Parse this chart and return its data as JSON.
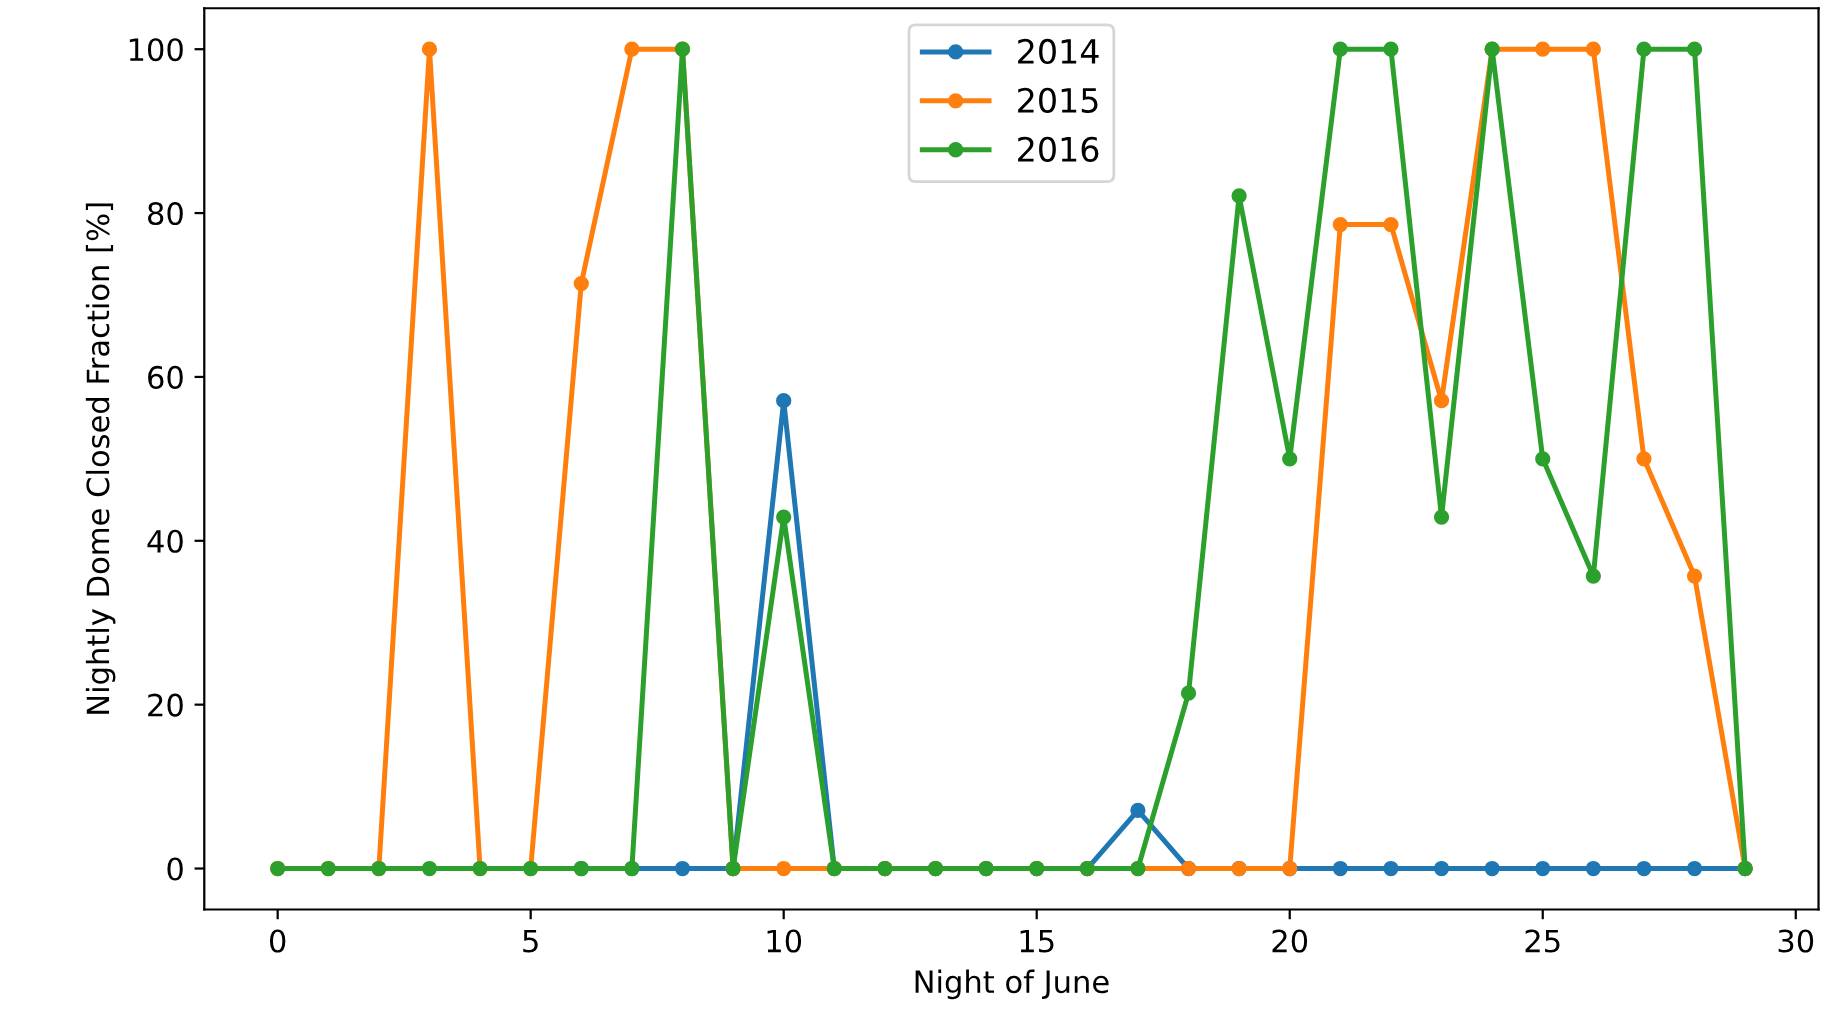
{
  "chart_data": {
    "type": "line",
    "xlabel": "Night of June",
    "ylabel": "Nightly Dome Closed Fraction [%]",
    "x": [
      0,
      1,
      2,
      3,
      4,
      5,
      6,
      7,
      8,
      9,
      10,
      11,
      12,
      13,
      14,
      15,
      16,
      17,
      18,
      19,
      20,
      21,
      22,
      23,
      24,
      25,
      26,
      27,
      28,
      29
    ],
    "series": [
      {
        "name": "2014",
        "color": "#1f77b4",
        "values": [
          null,
          null,
          null,
          null,
          null,
          null,
          0,
          0,
          0,
          0,
          57.1,
          0,
          0,
          0,
          0,
          0,
          0,
          7.1,
          0,
          0,
          0,
          0,
          0,
          0,
          0,
          0,
          0,
          0,
          0,
          0
        ]
      },
      {
        "name": "2015",
        "color": "#ff7f0e",
        "values": [
          0,
          0,
          0,
          100,
          0,
          0,
          71.4,
          100,
          100,
          0,
          0,
          0,
          0,
          0,
          0,
          0,
          0,
          0,
          0,
          0,
          0,
          78.6,
          78.6,
          57.1,
          100,
          100,
          100,
          50,
          35.7,
          0
        ]
      },
      {
        "name": "2016",
        "color": "#2ca02c",
        "values": [
          0,
          0,
          0,
          0,
          0,
          0,
          0,
          0,
          100,
          0,
          42.9,
          0,
          0,
          0,
          0,
          0,
          0,
          0,
          21.4,
          82.1,
          50,
          100,
          100,
          42.9,
          100,
          50,
          35.7,
          100,
          100,
          0
        ]
      }
    ],
    "xlim": [
      -1.45,
      30.45
    ],
    "xticks": [
      0,
      5,
      10,
      15,
      20,
      25,
      30
    ],
    "ylim": [
      -5,
      105
    ],
    "yticks": [
      0,
      20,
      40,
      60,
      80,
      100
    ],
    "marker": "circle",
    "line_style": "solid",
    "grid": false,
    "legend": "top center"
  }
}
